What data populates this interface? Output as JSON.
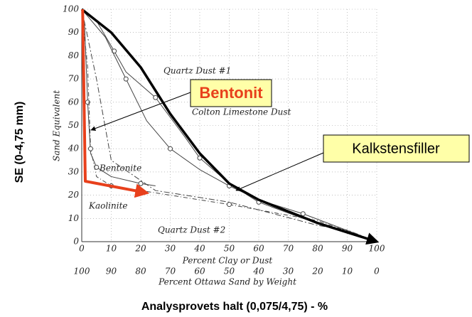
{
  "chart_data": {
    "type": "line",
    "y_label": "Sand Equivalent",
    "x_label": "Percent Clay or Dust",
    "x2_label": "Percent Ottawa Sand by Weight",
    "outer_y_label": "SE (0-4,75 mm)",
    "outer_x_label": "Analysprovets halt (0,075/4,75) - %",
    "xlim": [
      0,
      100
    ],
    "ylim": [
      0,
      100
    ],
    "xticks": [
      0,
      10,
      20,
      30,
      40,
      50,
      60,
      70,
      80,
      90,
      100
    ],
    "yticks": [
      0,
      10,
      20,
      30,
      40,
      50,
      60,
      70,
      80,
      90,
      100
    ],
    "x2ticks": [
      {
        "value": 0,
        "label": "100"
      },
      {
        "value": 10,
        "label": "90"
      },
      {
        "value": 20,
        "label": "80"
      },
      {
        "value": 30,
        "label": "70"
      },
      {
        "value": 40,
        "label": "60"
      },
      {
        "value": 50,
        "label": "50"
      },
      {
        "value": 60,
        "label": "40"
      },
      {
        "value": 70,
        "label": "30"
      },
      {
        "value": 80,
        "label": "20"
      },
      {
        "value": 90,
        "label": "10"
      },
      {
        "value": 100,
        "label": "0"
      }
    ],
    "grid": true,
    "series": [
      {
        "name": "Quartz Dust #1",
        "color": "#444",
        "x": [
          0,
          5,
          11,
          15,
          25,
          35,
          40,
          50,
          60,
          75,
          100
        ],
        "values": [
          100,
          95,
          82,
          73,
          62,
          45,
          36,
          25,
          17,
          10,
          0
        ]
      },
      {
        "name": "Colton Limestone Dust",
        "color": "#444",
        "x": [
          0,
          8,
          15,
          22,
          30,
          40,
          50,
          60,
          75,
          100
        ],
        "values": [
          100,
          88,
          70,
          52,
          40,
          31,
          24,
          18,
          12,
          0
        ]
      },
      {
        "name": "Bentonite",
        "color": "#444",
        "x": [
          0,
          1,
          2,
          3,
          5,
          10,
          20,
          25
        ],
        "values": [
          100,
          92,
          60,
          38,
          32,
          28,
          25,
          24
        ]
      },
      {
        "name": "Kaolinite",
        "color": "#444",
        "x": [
          0,
          2,
          3,
          5,
          10,
          30,
          50,
          80,
          100
        ],
        "values": [
          100,
          75,
          40,
          28,
          24,
          20,
          16,
          9,
          0
        ]
      },
      {
        "name": "Quartz Dust #2",
        "color": "#444",
        "x": [
          0,
          5,
          10,
          25,
          50,
          65,
          80,
          90,
          100
        ],
        "values": [
          100,
          70,
          35,
          22,
          17,
          12,
          7,
          5,
          0
        ]
      },
      {
        "name": "Kalkstensfiller",
        "color": "#000",
        "x": [
          0,
          10,
          20,
          30,
          40,
          50,
          60,
          70,
          80,
          90,
          100
        ],
        "values": [
          100,
          90,
          75,
          55,
          38,
          25,
          18,
          13,
          8,
          4,
          0
        ]
      },
      {
        "name": "Bentonit",
        "color": "#e8401c",
        "x": [
          0.3,
          1.2,
          22
        ],
        "values": [
          100,
          26,
          21
        ]
      }
    ]
  }
}
